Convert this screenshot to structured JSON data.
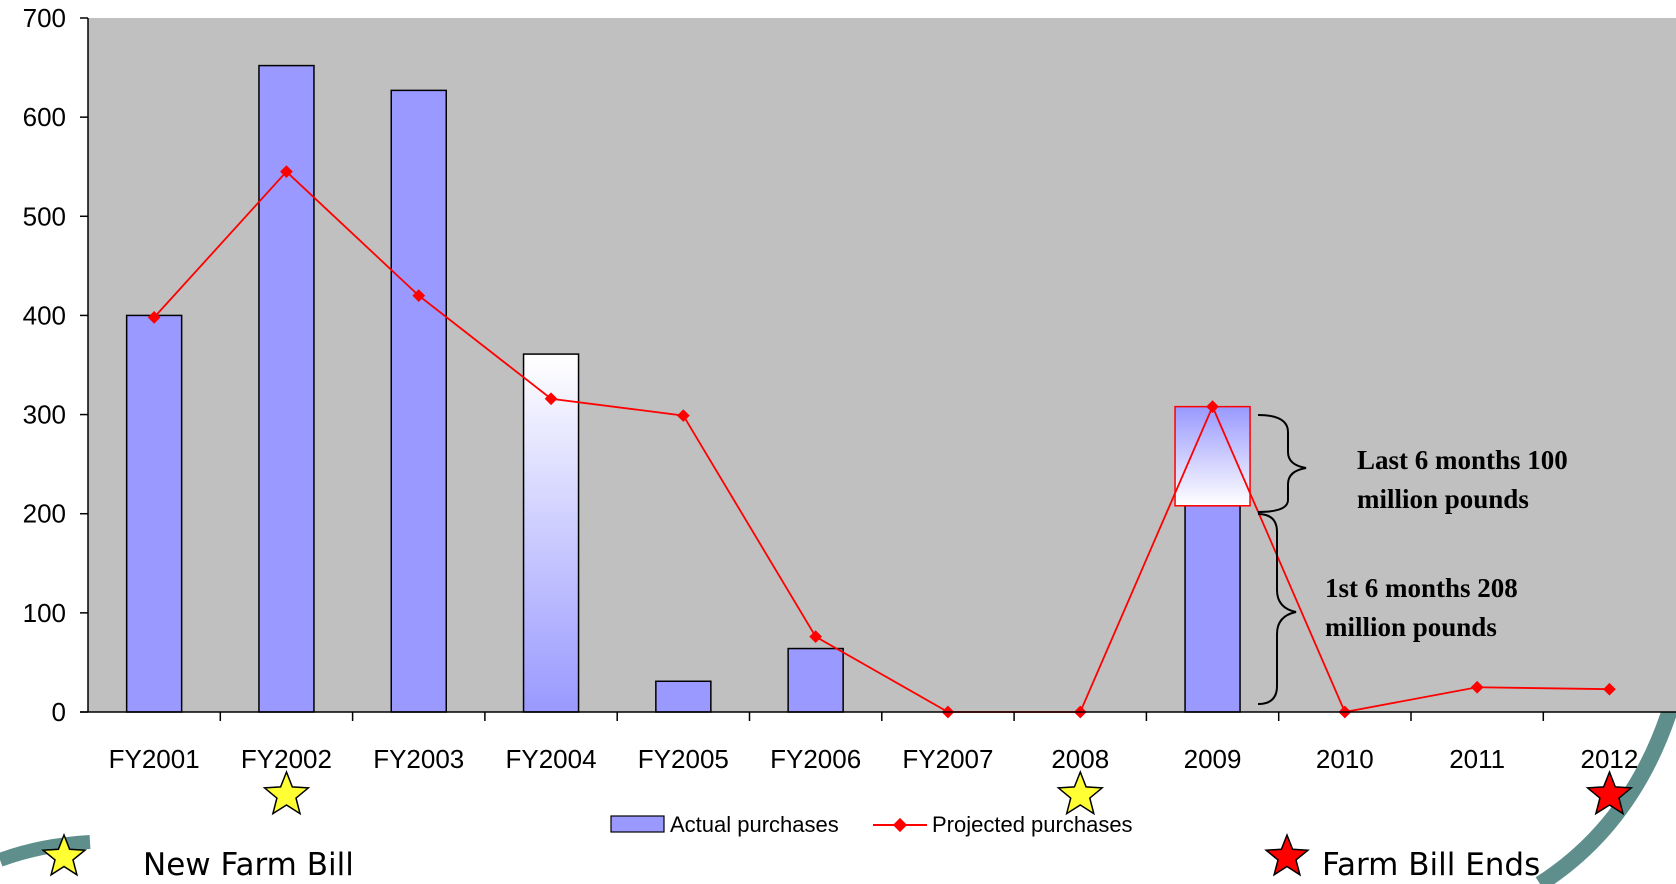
{
  "chart_data": {
    "type": "bar",
    "categories": [
      "FY2001",
      "FY2002",
      "FY2003",
      "FY2004",
      "FY2005",
      "FY2006",
      "FY2007",
      "2008",
      "2009",
      "2010",
      "2011",
      "2012"
    ],
    "ylim": [
      0,
      700
    ],
    "y_ticks": [
      "0",
      "100",
      "200",
      "300",
      "400",
      "500",
      "600",
      "700"
    ],
    "grid": false,
    "plot_background": "#c0c0c0",
    "series": [
      {
        "name": "Actual purchases",
        "type": "bar",
        "color": "#9999ff",
        "values": [
          400,
          652,
          627,
          361,
          31,
          64,
          null,
          null,
          308,
          null,
          null,
          null
        ]
      },
      {
        "name": "Projected purchases",
        "type": "line",
        "color": "#ff0000",
        "values": [
          398,
          545,
          420,
          316,
          299,
          76,
          0,
          0,
          308,
          0,
          25,
          23
        ]
      }
    ],
    "fy2009_split": {
      "first_half": 208,
      "second_half": 100
    },
    "annotations": [
      {
        "text_line1": "Last 6 months 100",
        "text_line2": "million pounds"
      },
      {
        "text_line1": "1st 6 months 208",
        "text_line2": "million pounds"
      }
    ],
    "legend_position": "bottom-center"
  },
  "footer_key": {
    "new_bill_label": "New Farm Bill",
    "new_bill_color": "#ffff33",
    "bill_ends_label": "Farm Bill Ends",
    "bill_ends_color": "#ff0000",
    "new_bill_markers": [
      "FY2002",
      "2008"
    ],
    "bill_ends_markers": [
      "2012"
    ]
  }
}
